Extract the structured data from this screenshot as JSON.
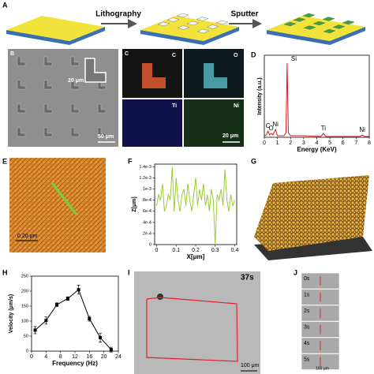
{
  "panels": {
    "labels": [
      "A",
      "B",
      "C",
      "D",
      "E",
      "F",
      "G",
      "H",
      "I",
      "J"
    ],
    "A": {
      "steps": [
        "Lithography",
        "Sputter"
      ]
    },
    "B": {
      "scale_inset": "20 μm",
      "scale": "50 μm"
    },
    "C": {
      "maps": [
        "C",
        "O",
        "Ti",
        "Ni"
      ],
      "scale": "20 μm"
    },
    "E": {
      "scale": "0.20 μm"
    },
    "I": {
      "time": "37s",
      "scale": "100 μm"
    },
    "J": {
      "times": [
        "0s",
        "1s",
        "2s",
        "3s",
        "4s",
        "5s"
      ],
      "scale": "100 μm"
    }
  },
  "chart_data": [
    {
      "type": "line",
      "x_label": "Energy (KeV)",
      "y_label": "Intensity (a.u.)",
      "xlim": [
        0,
        8
      ],
      "xticks": [
        0,
        1,
        2,
        3,
        4,
        5,
        6,
        7,
        8
      ],
      "ylim": [
        0,
        105
      ],
      "series": [
        {
          "color": "#d7191c",
          "x": [
            0,
            0.15,
            0.28,
            0.4,
            0.52,
            0.65,
            0.85,
            1.0,
            1.5,
            1.65,
            1.74,
            1.83,
            2.0,
            3,
            4.3,
            4.5,
            4.7,
            6,
            7.3,
            7.47,
            7.65,
            8
          ],
          "values": [
            2,
            3,
            8,
            3,
            5,
            3,
            10,
            2,
            2,
            6,
            95,
            6,
            2,
            2,
            1,
            5,
            1,
            1,
            1,
            3,
            1,
            1
          ]
        }
      ],
      "annotations": [
        {
          "text": "C",
          "x": 0.28
        },
        {
          "text": "O",
          "x": 0.52
        },
        {
          "text": "Ni",
          "x": 0.85
        },
        {
          "text": "Si",
          "x": 1.74
        },
        {
          "text": "Ti",
          "x": 4.5
        },
        {
          "text": "Ni",
          "x": 7.47
        }
      ]
    },
    {
      "type": "line",
      "x_label": "X[μm]",
      "y_label": "Z[μm]",
      "xlim": [
        -0.01,
        0.41
      ],
      "xticks": [
        0,
        0.1,
        0.2,
        0.3,
        0.4
      ],
      "ylim": [
        0,
        0.00145
      ],
      "yticks": [
        0,
        {
          "value": 0.0002,
          "label": "2e-4"
        },
        {
          "value": 0.0004,
          "label": "4e-4"
        },
        {
          "value": 0.0006,
          "label": "6e-4"
        },
        {
          "value": 0.0008,
          "label": "8e-4"
        },
        {
          "value": 0.001,
          "label": "1e-3"
        },
        {
          "value": 0.0012,
          "label": "1.2e-3"
        },
        {
          "value": 0.0014,
          "label": "1.4e-3"
        }
      ],
      "series": [
        {
          "color": "#9acd32",
          "x": [
            0,
            0.01,
            0.02,
            0.03,
            0.04,
            0.05,
            0.06,
            0.07,
            0.08,
            0.09,
            0.1,
            0.11,
            0.12,
            0.13,
            0.14,
            0.15,
            0.16,
            0.17,
            0.18,
            0.19,
            0.2,
            0.21,
            0.22,
            0.23,
            0.24,
            0.25,
            0.26,
            0.27,
            0.28,
            0.29,
            0.3,
            0.31,
            0.32,
            0.33,
            0.34,
            0.35,
            0.36,
            0.37,
            0.38,
            0.39,
            0.4
          ],
          "values": [
            0.0007,
            0.0009,
            0.0008,
            0.0011,
            0.0006,
            0.0007,
            0.0009,
            0.0008,
            0.0014,
            0.0006,
            0.0012,
            0.0008,
            0.0006,
            0.0009,
            0.001,
            0.0007,
            0.0011,
            0.0008,
            0.0006,
            0.0009,
            0.0012,
            0.0007,
            0.001,
            0.0008,
            0.0011,
            0.0007,
            0.0009,
            0.0006,
            0.001,
            0.0008,
            0,
            0.0009,
            0.0008,
            0.001,
            0.0007,
            0.00135,
            0.0008,
            0.0006,
            0.0009,
            0.0007,
            0.0008
          ]
        }
      ]
    },
    {
      "type": "line",
      "x_label": "Frequency (Hz)",
      "y_label": "Velocity (μm/s)",
      "xlim": [
        0,
        24
      ],
      "xticks": [
        0,
        4,
        8,
        12,
        16,
        20,
        24
      ],
      "ylim": [
        0,
        250
      ],
      "yticks": [
        0,
        50,
        100,
        150,
        200,
        250
      ],
      "markers": true,
      "series": [
        {
          "color": "#000000",
          "x": [
            1,
            4,
            7,
            10,
            13,
            16,
            19,
            22
          ],
          "values": [
            70,
            102,
            155,
            175,
            205,
            108,
            45,
            5
          ],
          "errors": [
            12,
            12,
            6,
            6,
            15,
            8,
            15,
            8
          ]
        }
      ]
    }
  ]
}
